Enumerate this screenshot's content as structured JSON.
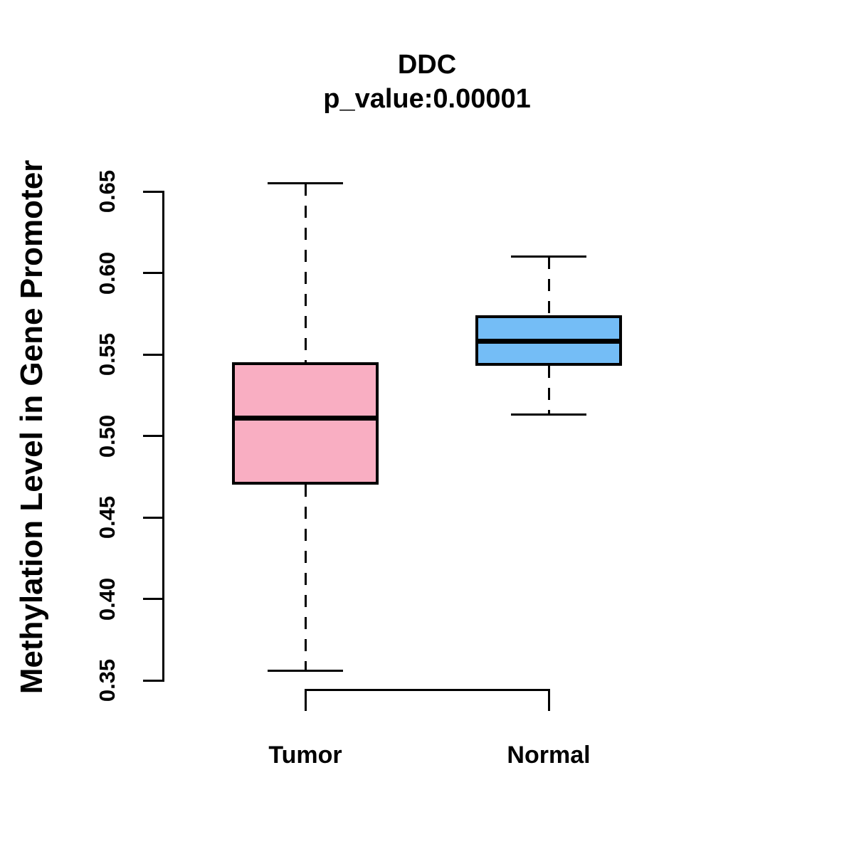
{
  "chart_data": {
    "type": "boxplot",
    "title": "DDC",
    "subtitle": "p_value:0.00001",
    "ylabel": "Methylation Level in Gene Promoter",
    "xlabel": "",
    "categories": [
      "Tumor",
      "Normal"
    ],
    "series": [
      {
        "name": "Tumor",
        "whisker_low": 0.356,
        "q1": 0.47,
        "median": 0.511,
        "q3": 0.545,
        "whisker_high": 0.655,
        "fill_color": "#F9AEC2"
      },
      {
        "name": "Normal",
        "whisker_low": 0.513,
        "q1": 0.543,
        "median": 0.558,
        "q3": 0.574,
        "whisker_high": 0.61,
        "fill_color": "#74BDF6"
      }
    ],
    "yticks": [
      0.35,
      0.4,
      0.45,
      0.5,
      0.55,
      0.6,
      0.65
    ],
    "ytick_labels": [
      "0.35",
      "0.40",
      "0.45",
      "0.50",
      "0.55",
      "0.60",
      "0.65"
    ],
    "ylim": [
      0.35,
      0.65
    ],
    "grid": false,
    "legend_position": "none",
    "axis_color": "#000000",
    "median_color": "#000000",
    "border_color": "#000000"
  }
}
